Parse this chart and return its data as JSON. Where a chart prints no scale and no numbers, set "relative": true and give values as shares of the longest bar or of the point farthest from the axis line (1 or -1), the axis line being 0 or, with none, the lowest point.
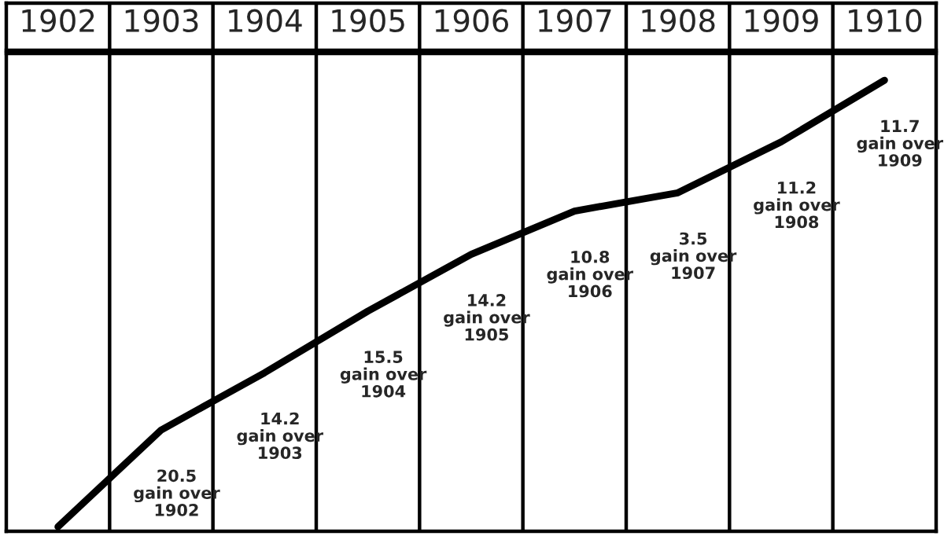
{
  "chart_data": {
    "type": "line",
    "relative": true,
    "categories": [
      "1902",
      "1903",
      "1904",
      "1905",
      "1906",
      "1907",
      "1908",
      "1909",
      "1910"
    ],
    "series": [
      {
        "color": "#000000",
        "values": [
          0,
          0.217,
          0.345,
          0.483,
          0.61,
          0.707,
          0.748,
          0.862,
          1
        ]
      }
    ],
    "grid": "x",
    "marker": "none",
    "line_style": "solid",
    "annotations": [
      {
        "text": "20.5\ngain over\n1902",
        "x": "1903",
        "y": 0.217
      },
      {
        "text": "14.2\ngain over\n1903",
        "x": "1904",
        "y": 0.345
      },
      {
        "text": "15.5\ngain over\n1904",
        "x": "1905",
        "y": 0.483
      },
      {
        "text": "14.2\ngain over\n1905",
        "x": "1906",
        "y": 0.61
      },
      {
        "text": "10.8\ngain over\n1906",
        "x": "1907",
        "y": 0.707
      },
      {
        "text": "3.5\ngain over\n1907",
        "x": "1908",
        "y": 0.748
      },
      {
        "text": "11.2\ngain over\n1908",
        "x": "1909",
        "y": 0.862
      },
      {
        "text": "11.7\ngain over\n1909",
        "x": "1910",
        "y": 1
      }
    ]
  }
}
